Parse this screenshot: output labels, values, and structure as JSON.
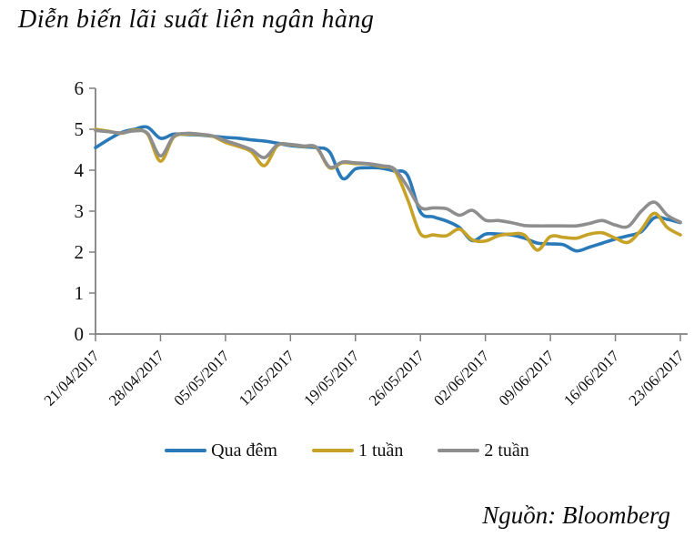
{
  "page": {
    "title": "Diễn biến lãi suất liên ngân hàng",
    "source": "Nguồn: Bloomberg"
  },
  "chart_data": {
    "type": "line",
    "title": "Diễn biến lãi suất liên ngân hàng",
    "xlabel": "",
    "ylabel": "",
    "ylim": [
      0,
      6
    ],
    "y_ticks": [
      0,
      1,
      2,
      3,
      4,
      5,
      6
    ],
    "grid": "off",
    "legend_position": "bottom",
    "x_tick_labels": [
      "21/04/2017",
      "28/04/2017",
      "05/05/2017",
      "12/05/2017",
      "19/05/2017",
      "26/05/2017",
      "02/06/2017",
      "09/06/2017",
      "16/06/2017",
      "23/06/2017"
    ],
    "x_tick_every": 5,
    "axis_color": "#7f7f7f",
    "series": [
      {
        "name": "Qua đêm",
        "color": "#2a7ab9",
        "values": [
          4.55,
          4.75,
          4.92,
          5.0,
          5.05,
          4.78,
          4.88,
          4.87,
          4.86,
          4.83,
          4.8,
          4.78,
          4.74,
          4.71,
          4.66,
          4.6,
          4.57,
          4.55,
          4.45,
          3.8,
          4.03,
          4.06,
          4.05,
          3.98,
          3.88,
          2.98,
          2.86,
          2.76,
          2.6,
          2.28,
          2.44,
          2.44,
          2.42,
          2.34,
          2.22,
          2.2,
          2.18,
          2.03,
          2.12,
          2.22,
          2.32,
          2.4,
          2.5,
          2.84,
          2.8,
          2.72
        ]
      },
      {
        "name": "1 tuần",
        "color": "#c7a228",
        "values": [
          5.0,
          4.95,
          4.9,
          4.98,
          4.88,
          4.22,
          4.8,
          4.88,
          4.87,
          4.83,
          4.68,
          4.58,
          4.45,
          4.11,
          4.6,
          4.62,
          4.58,
          4.55,
          4.06,
          4.18,
          4.16,
          4.15,
          4.09,
          4.0,
          3.3,
          2.45,
          2.42,
          2.4,
          2.56,
          2.3,
          2.27,
          2.4,
          2.44,
          2.42,
          2.05,
          2.38,
          2.36,
          2.34,
          2.44,
          2.47,
          2.34,
          2.24,
          2.55,
          2.95,
          2.6,
          2.42
        ]
      },
      {
        "name": "2 tuần",
        "color": "#8e8e8e",
        "values": [
          4.97,
          4.94,
          4.91,
          4.96,
          4.9,
          4.35,
          4.82,
          4.9,
          4.88,
          4.84,
          4.72,
          4.62,
          4.5,
          4.31,
          4.62,
          4.63,
          4.59,
          4.56,
          4.08,
          4.2,
          4.18,
          4.16,
          4.11,
          4.03,
          3.6,
          3.09,
          3.08,
          3.06,
          2.9,
          3.02,
          2.78,
          2.77,
          2.72,
          2.65,
          2.64,
          2.64,
          2.64,
          2.64,
          2.7,
          2.77,
          2.66,
          2.63,
          3.0,
          3.22,
          2.9,
          2.73
        ]
      }
    ]
  }
}
